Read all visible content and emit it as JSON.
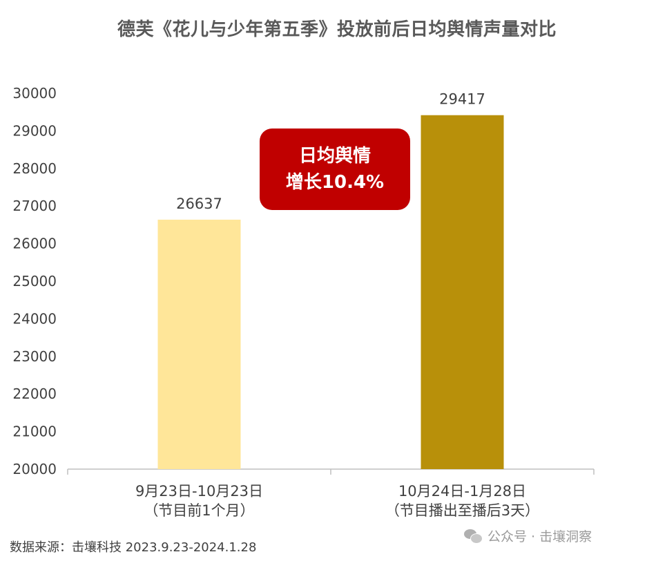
{
  "title": "德芙《花儿与少年第五季》投放前后日均舆情声量对比",
  "badge": {
    "line1": "日均舆情",
    "line2": "增长10.4%",
    "color": "#c00000"
  },
  "source": "数据来源：击壤科技 2023.9.23-2024.1.28",
  "watermark": {
    "icon": "wechat-icon",
    "text": "公众号 · 击壤洞察"
  },
  "chart_data": {
    "type": "bar",
    "categories": [
      {
        "line1": "9月23日-10月23日",
        "line2": "（节目前1个月）"
      },
      {
        "line1": "10月24日-1月28日",
        "line2": "（节目播出至播后3天）"
      }
    ],
    "values": [
      26637,
      29417
    ],
    "value_labels": [
      "26637",
      "29417"
    ],
    "colors": [
      "#ffe699",
      "#b8900a"
    ],
    "ylim": [
      20000,
      30000
    ],
    "yticks": [
      "20000",
      "21000",
      "22000",
      "23000",
      "24000",
      "25000",
      "26000",
      "27000",
      "28000",
      "29000",
      "30000"
    ],
    "grid": false,
    "legend": "none"
  }
}
